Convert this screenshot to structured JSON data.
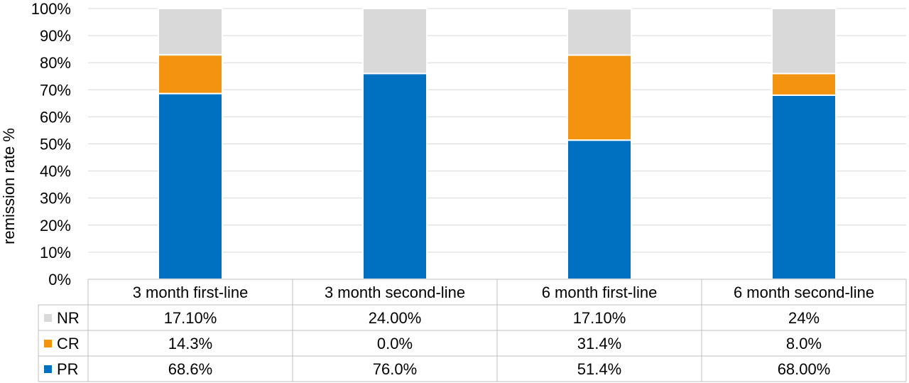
{
  "chart_data": {
    "type": "bar",
    "stacked": true,
    "title": "",
    "xlabel": "",
    "ylabel": "remission rate %",
    "ylim": [
      0,
      100
    ],
    "yticks": [
      "0%",
      "10%",
      "20%",
      "30%",
      "40%",
      "50%",
      "60%",
      "70%",
      "80%",
      "90%",
      "100%"
    ],
    "grid": true,
    "legend": "data table",
    "categories": [
      "3 month first-line",
      "3 month second-line",
      "6 month first-line",
      "6 month second-line"
    ],
    "series": [
      {
        "name": "PR",
        "color": "#0070C0",
        "values": [
          68.6,
          76.0,
          51.4,
          68.0
        ],
        "labels": [
          "68.6%",
          "76.0%",
          "51.4%",
          "68.00%"
        ]
      },
      {
        "name": "CR",
        "color": "#F39410",
        "values": [
          14.3,
          0.0,
          31.4,
          8.0
        ],
        "labels": [
          "14.3%",
          "0.0%",
          "31.4%",
          "8.0%"
        ]
      },
      {
        "name": "NR",
        "color": "#D9D9D9",
        "values": [
          17.1,
          24.0,
          17.1,
          24.0
        ],
        "labels": [
          "17.10%",
          "24.00%",
          "17.10%",
          "24%"
        ]
      }
    ],
    "table_row_order": [
      "NR",
      "CR",
      "PR"
    ]
  }
}
